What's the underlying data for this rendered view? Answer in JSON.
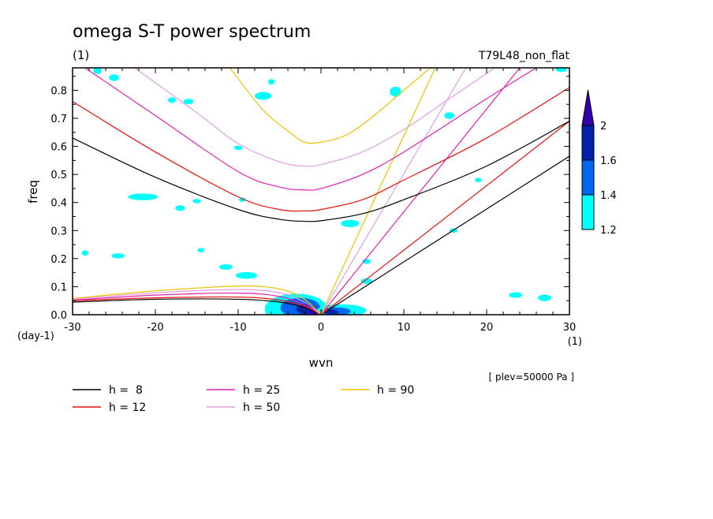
{
  "chart_data": {
    "type": "line",
    "title": "omega S-T power spectrum",
    "subtitle_left": "(1)",
    "subtitle_right": "T79L48_non_flat",
    "xlabel": "wvn",
    "ylabel": "freq",
    "x_unit": "(1)",
    "y_unit": "(day-1)",
    "xlim": [
      -30,
      30
    ],
    "ylim": [
      0.0,
      0.88
    ],
    "xticks": [
      -30,
      -20,
      -10,
      0,
      10,
      20,
      30
    ],
    "xtick_labels": [
      "-30",
      "-20",
      "-10",
      "0",
      "10",
      "20",
      "30"
    ],
    "yticks": [
      0.0,
      0.1,
      0.2,
      0.3,
      0.4,
      0.5,
      0.6,
      0.7,
      0.8
    ],
    "ytick_labels": [
      "0.0",
      "0.1",
      "0.2",
      "0.3",
      "0.4",
      "0.5",
      "0.6",
      "0.7",
      "0.8"
    ],
    "annotation": "[ plev=50000 Pa ]",
    "colorbar": {
      "levels": [
        "1.2",
        "1.4",
        "1.6",
        "2"
      ],
      "colors": [
        "#00ffff",
        "#0066ee",
        "#0022aa",
        "#3300aa"
      ]
    },
    "legend": [
      {
        "label": "h =  8",
        "color": "#000000"
      },
      {
        "label": "h = 12",
        "color": "#e81010"
      },
      {
        "label": "h = 25",
        "color": "#e020b0"
      },
      {
        "label": "h = 50",
        "color": "#e0a0e0"
      },
      {
        "label": "h = 90",
        "color": "#f0c000"
      }
    ],
    "dispersion_curves": {
      "kelvin": [
        {
          "h": "8",
          "x": [
            0,
            30
          ],
          "y": [
            0,
            0.565
          ]
        },
        {
          "h": "12",
          "x": [
            0,
            30
          ],
          "y": [
            0,
            0.69
          ]
        },
        {
          "h": "25",
          "x": [
            0,
            24
          ],
          "y": [
            0,
            0.88
          ]
        },
        {
          "h": "50",
          "x": [
            0,
            17.5
          ],
          "y": [
            0,
            0.88
          ]
        },
        {
          "h": "90",
          "x": [
            0,
            13.8
          ],
          "y": [
            0,
            0.88
          ]
        }
      ],
      "er_n1": [
        {
          "h": "8",
          "x": [
            -30,
            -20,
            -10,
            -5,
            -2,
            0
          ],
          "y": [
            0.045,
            0.055,
            0.055,
            0.045,
            0.025,
            0
          ]
        },
        {
          "h": "12",
          "x": [
            -30,
            -20,
            -10,
            -5,
            -2,
            0
          ],
          "y": [
            0.05,
            0.06,
            0.063,
            0.052,
            0.03,
            0
          ]
        },
        {
          "h": "25",
          "x": [
            -30,
            -20,
            -10,
            -5,
            -2,
            0
          ],
          "y": [
            0.052,
            0.07,
            0.077,
            0.065,
            0.035,
            0
          ]
        },
        {
          "h": "50",
          "x": [
            -30,
            -20,
            -10,
            -5,
            -2,
            0
          ],
          "y": [
            0.055,
            0.078,
            0.09,
            0.078,
            0.045,
            0
          ]
        },
        {
          "h": "90",
          "x": [
            -30,
            -20,
            -10,
            -5,
            -2,
            0
          ],
          "y": [
            0.058,
            0.085,
            0.102,
            0.092,
            0.055,
            0
          ]
        }
      ],
      "ig_n1": [
        {
          "h": "8",
          "x": [
            -30,
            -20,
            -10,
            -5,
            -2,
            0,
            5,
            10,
            20,
            30
          ],
          "y": [
            0.63,
            0.49,
            0.375,
            0.34,
            0.333,
            0.335,
            0.36,
            0.41,
            0.53,
            0.69
          ]
        },
        {
          "h": "12",
          "x": [
            -30,
            -20,
            -10,
            -5,
            -2,
            0,
            5,
            10,
            20,
            30
          ],
          "y": [
            0.76,
            0.58,
            0.42,
            0.375,
            0.37,
            0.375,
            0.41,
            0.48,
            0.63,
            0.81
          ]
        },
        {
          "h": "25",
          "x": [
            -28.5,
            -20,
            -10,
            -5,
            -2,
            0,
            5,
            10,
            20,
            26
          ],
          "y": [
            0.88,
            0.71,
            0.51,
            0.455,
            0.445,
            0.45,
            0.5,
            0.58,
            0.77,
            0.88
          ]
        },
        {
          "h": "50",
          "x": [
            -22.5,
            -15,
            -10,
            -5,
            -2,
            0,
            5,
            10,
            15,
            21
          ],
          "y": [
            0.88,
            0.72,
            0.61,
            0.545,
            0.53,
            0.535,
            0.58,
            0.66,
            0.76,
            0.88
          ]
        },
        {
          "h": "90",
          "x": [
            -11,
            -7,
            -4,
            -2,
            0,
            3,
            6,
            10,
            13.2
          ],
          "y": [
            0.88,
            0.73,
            0.655,
            0.615,
            0.615,
            0.64,
            0.7,
            0.8,
            0.88
          ]
        }
      ]
    },
    "power_patches": [
      {
        "x": -3,
        "y": 0.02,
        "rx": 3.8,
        "ry": 0.055,
        "level": 0
      },
      {
        "x": -2.5,
        "y": 0.025,
        "rx": 2.4,
        "ry": 0.035,
        "level": 1
      },
      {
        "x": -1.8,
        "y": 0.02,
        "rx": 1.2,
        "ry": 0.018,
        "level": 2
      },
      {
        "x": -0.8,
        "y": 0.01,
        "rx": 0.5,
        "ry": 0.01,
        "level": 3
      },
      {
        "x": -9,
        "y": 0.14,
        "rx": 1.3,
        "ry": 0.012,
        "level": 0
      },
      {
        "x": 2.5,
        "y": 0.015,
        "rx": 3.0,
        "ry": 0.022,
        "level": 0
      },
      {
        "x": 1.8,
        "y": 0.012,
        "rx": 1.8,
        "ry": 0.014,
        "level": 1
      },
      {
        "x": 1.2,
        "y": 0.01,
        "rx": 0.8,
        "ry": 0.008,
        "level": 2
      },
      {
        "x": 3.5,
        "y": 0.325,
        "rx": 1.1,
        "ry": 0.013,
        "level": 0
      },
      {
        "x": 5.5,
        "y": 0.12,
        "rx": 0.7,
        "ry": 0.01,
        "level": 0
      },
      {
        "x": -25,
        "y": 0.845,
        "rx": 0.6,
        "ry": 0.012,
        "level": 0
      },
      {
        "x": -18,
        "y": 0.765,
        "rx": 0.5,
        "ry": 0.01,
        "level": 0
      },
      {
        "x": -16,
        "y": 0.76,
        "rx": 0.6,
        "ry": 0.01,
        "level": 0
      },
      {
        "x": -7,
        "y": 0.78,
        "rx": 1.0,
        "ry": 0.014,
        "level": 0
      },
      {
        "x": -6,
        "y": 0.83,
        "rx": 0.4,
        "ry": 0.01,
        "level": 0
      },
      {
        "x": -10,
        "y": 0.595,
        "rx": 0.5,
        "ry": 0.008,
        "level": 0
      },
      {
        "x": -21.5,
        "y": 0.42,
        "rx": 1.8,
        "ry": 0.012,
        "level": 0
      },
      {
        "x": -17,
        "y": 0.38,
        "rx": 0.6,
        "ry": 0.01,
        "level": 0
      },
      {
        "x": -15,
        "y": 0.405,
        "rx": 0.5,
        "ry": 0.008,
        "level": 0
      },
      {
        "x": -9.5,
        "y": 0.41,
        "rx": 0.4,
        "ry": 0.008,
        "level": 0
      },
      {
        "x": -24.5,
        "y": 0.21,
        "rx": 0.8,
        "ry": 0.009,
        "level": 0
      },
      {
        "x": -11.5,
        "y": 0.17,
        "rx": 0.8,
        "ry": 0.01,
        "level": 0
      },
      {
        "x": -14.5,
        "y": 0.23,
        "rx": 0.4,
        "ry": 0.008,
        "level": 0
      },
      {
        "x": 9,
        "y": 0.795,
        "rx": 0.7,
        "ry": 0.018,
        "level": 0
      },
      {
        "x": 15.5,
        "y": 0.71,
        "rx": 0.6,
        "ry": 0.012,
        "level": 0
      },
      {
        "x": 29,
        "y": 0.875,
        "rx": 0.7,
        "ry": 0.01,
        "level": 0
      },
      {
        "x": 19,
        "y": 0.48,
        "rx": 0.4,
        "ry": 0.008,
        "level": 0
      },
      {
        "x": 23.5,
        "y": 0.07,
        "rx": 0.8,
        "ry": 0.01,
        "level": 0
      },
      {
        "x": 27,
        "y": 0.06,
        "rx": 0.8,
        "ry": 0.012,
        "level": 0
      },
      {
        "x": 16,
        "y": 0.3,
        "rx": 0.5,
        "ry": 0.008,
        "level": 0
      },
      {
        "x": 5.5,
        "y": 0.19,
        "rx": 0.5,
        "ry": 0.009,
        "level": 0
      },
      {
        "x": -28.5,
        "y": 0.22,
        "rx": 0.4,
        "ry": 0.01,
        "level": 0
      },
      {
        "x": -27,
        "y": 0.87,
        "rx": 0.5,
        "ry": 0.012,
        "level": 0
      }
    ]
  }
}
